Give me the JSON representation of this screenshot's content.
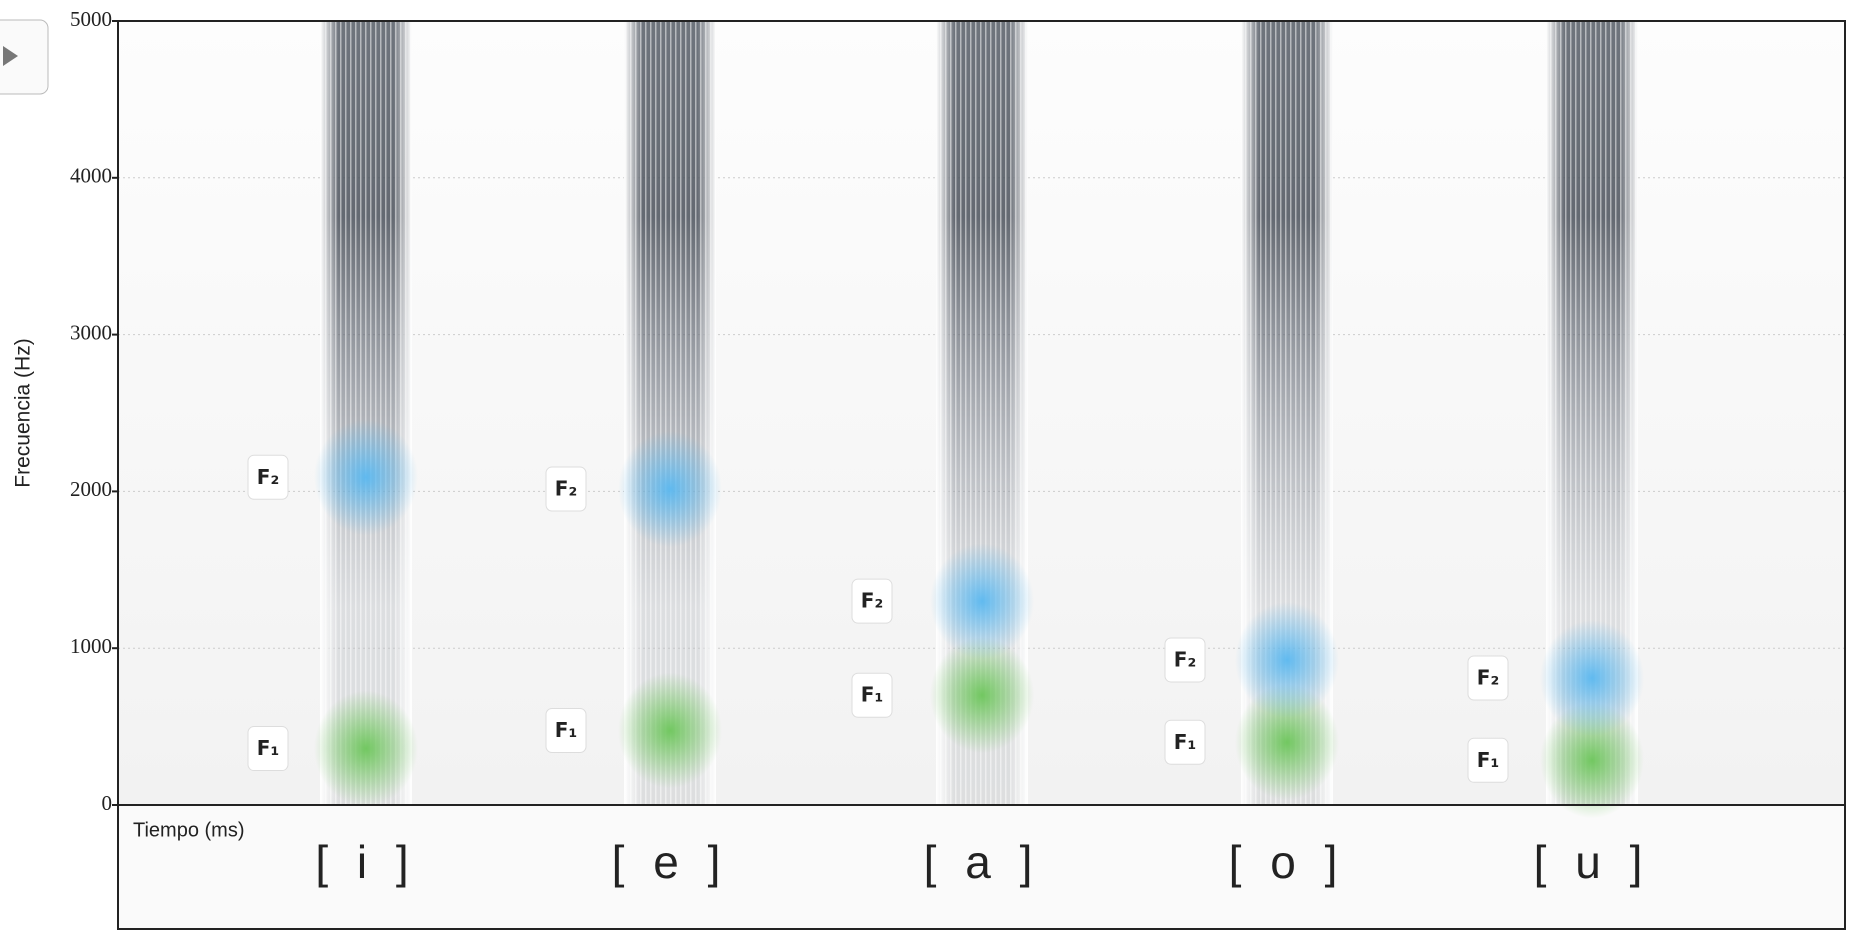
{
  "chart_data": {
    "type": "spectrogram",
    "ylabel": "Frecuencia (Hz)",
    "xlabel": "Tiempo (ms)",
    "categories": [
      "[ i ]",
      "[ e ]",
      "[ a ]",
      "[ o ]",
      "[ u ]"
    ],
    "series": [
      {
        "name": "F₁",
        "color": "#6cc65a",
        "values": [
          360,
          475,
          700,
          400,
          285
        ]
      },
      {
        "name": "F₂",
        "color": "#5ab8f0",
        "values": [
          2090,
          2015,
          1300,
          925,
          810
        ]
      }
    ],
    "ylim": [
      0,
      5000
    ],
    "yticks": [
      0,
      1000,
      2000,
      3000,
      4000,
      5000
    ],
    "grid": true
  }
}
